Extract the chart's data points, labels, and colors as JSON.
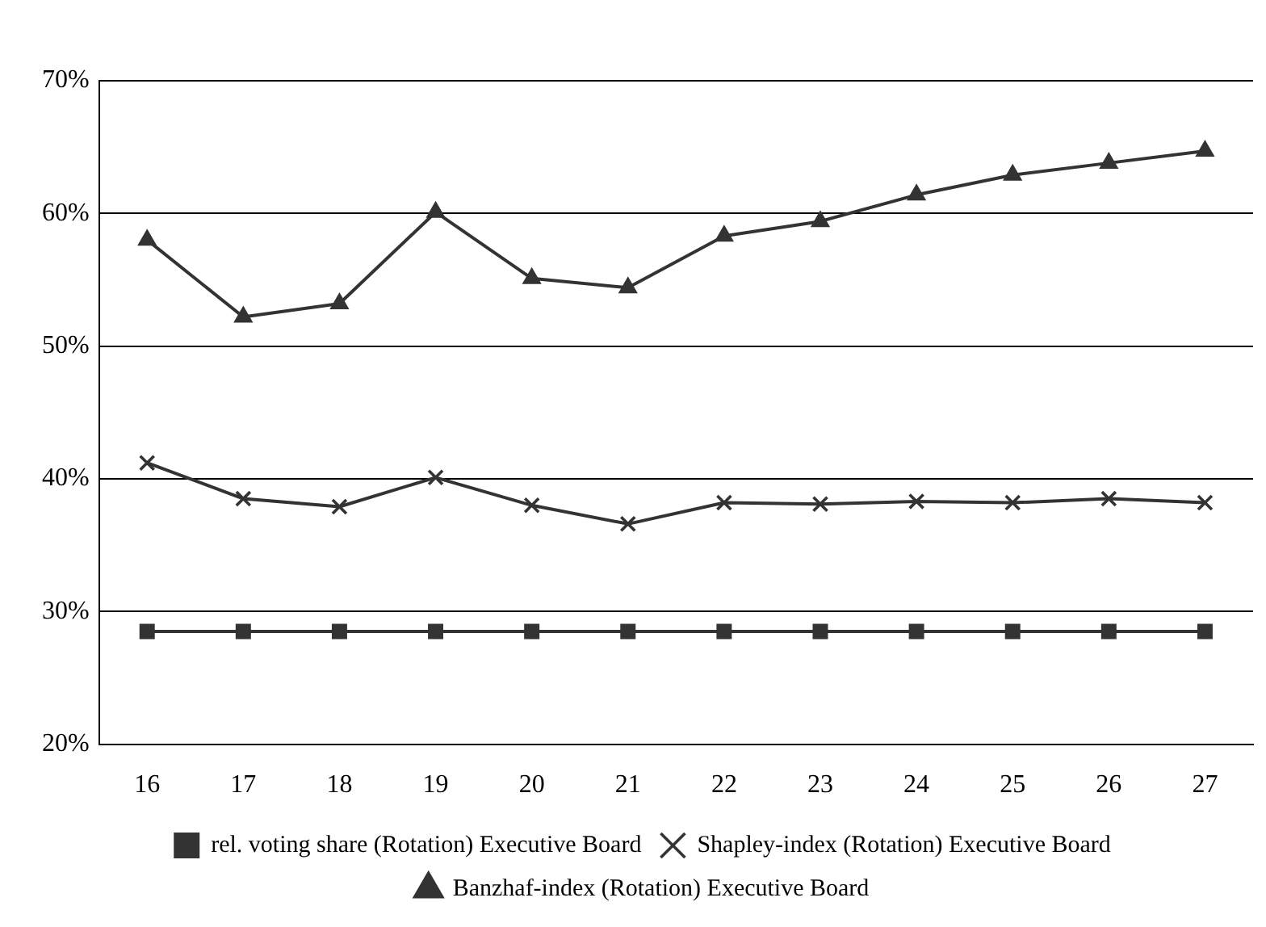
{
  "chart_data": {
    "type": "line",
    "categories": [
      "16",
      "17",
      "18",
      "19",
      "20",
      "21",
      "22",
      "23",
      "24",
      "25",
      "26",
      "27"
    ],
    "series": [
      {
        "name": "rel. voting share (Rotation) Executive Board",
        "color": "#333333",
        "marker": "square",
        "values": [
          28.5,
          28.5,
          28.5,
          28.5,
          28.5,
          28.5,
          28.5,
          28.5,
          28.5,
          28.5,
          28.5,
          28.5
        ]
      },
      {
        "name": "Shapley-index (Rotation) Executive Board",
        "color": "#333333",
        "marker": "cross",
        "values": [
          41.2,
          38.5,
          37.9,
          40.1,
          38.0,
          36.6,
          38.2,
          38.1,
          38.3,
          38.2,
          38.5,
          38.2
        ]
      },
      {
        "name": "Banzhaf-index (Rotation) Executive Board",
        "color": "#333333",
        "marker": "triangle",
        "values": [
          58.0,
          52.2,
          53.2,
          60.1,
          55.1,
          54.4,
          58.3,
          59.4,
          61.4,
          62.9,
          63.8,
          64.7
        ]
      }
    ],
    "ylim": [
      20,
      70
    ],
    "yticks": [
      {
        "value": 20,
        "label": "20%"
      },
      {
        "value": 30,
        "label": "30%"
      },
      {
        "value": 40,
        "label": "40%"
      },
      {
        "value": 50,
        "label": "50%"
      },
      {
        "value": 60,
        "label": "60%"
      },
      {
        "value": 70,
        "label": "70%"
      }
    ],
    "grid": "y",
    "legend": "bottom",
    "line_style": "solid"
  }
}
